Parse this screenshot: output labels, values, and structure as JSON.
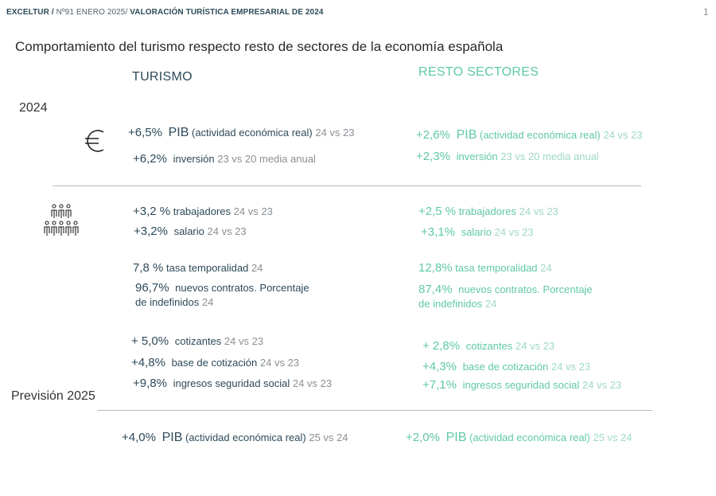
{
  "header": {
    "brand": "EXCELTUR /",
    "issue": "Nº91 ENERO 2025/",
    "title": "VALORACIÓN TURÍSTICA EMPRESARIAL DE  2024",
    "page_number": "1"
  },
  "title": "Comportamiento del turismo respecto resto de sectores de la economía española",
  "columns": {
    "turismo": "TURISMO",
    "resto": "RESTO SECTORES"
  },
  "sections": {
    "year": "2024",
    "forecast": "Previsión 2025"
  },
  "icons": {
    "economy": "euro-icon",
    "employment": "people-icon"
  },
  "colors": {
    "turismo": "#2d4a5a",
    "resto": "#5fc9a6"
  },
  "turismo": {
    "pib": {
      "value": "+6,5%",
      "name": "PIB",
      "label": "(actividad económica real)",
      "period": "24 vs 23"
    },
    "inversion": {
      "value": "+6,2%",
      "label": "inversión",
      "period": "23 vs 20 media anual"
    },
    "trabajadores": {
      "value": "+3,2 %",
      "label": "trabajadores",
      "period": "24 vs 23"
    },
    "salario": {
      "value": "+3,2%",
      "label": "salario",
      "period": "24 vs 23"
    },
    "temporalidad": {
      "value": "7,8 %",
      "label": "tasa temporalidad",
      "period": "24"
    },
    "contratos": {
      "value": "96,7%",
      "label": "nuevos contratos. Porcentaje",
      "label2": "de indefinidos",
      "period": "24"
    },
    "cotizantes": {
      "value": "+ 5,0%",
      "label": "cotizantes",
      "period": "24 vs 23"
    },
    "base": {
      "value": "+4,8%",
      "label": "base de cotización",
      "period": "24 vs 23"
    },
    "ingresos": {
      "value": "+9,8%",
      "label": "ingresos seguridad social",
      "period": "24 vs 23"
    },
    "pib2025": {
      "value": "+4,0%",
      "name": "PIB",
      "label": "(actividad económica real)",
      "period": "25 vs 24"
    }
  },
  "resto": {
    "pib": {
      "value": "+2,6%",
      "name": "PIB",
      "label": "(actividad económica real)",
      "period": "24 vs 23"
    },
    "inversion": {
      "value": "+2,3%",
      "label": "inversión",
      "period": "23 vs 20 media anual"
    },
    "trabajadores": {
      "value": "+2,5 %",
      "label": "trabajadores",
      "period": "24 vs 23"
    },
    "salario": {
      "value": "+3,1%",
      "label": "salario",
      "period": "24 vs 23"
    },
    "temporalidad": {
      "value": "12,8%",
      "label": "tasa temporalidad",
      "period": "24"
    },
    "contratos": {
      "value": "87,4%",
      "label": "nuevos contratos. Porcentaje",
      "label2": "de indefinidos",
      "period": "24"
    },
    "cotizantes": {
      "value": "+ 2,8%",
      "label": "cotizantes",
      "period": "24 vs 23"
    },
    "base": {
      "value": "+4,3%",
      "label": "base de cotización",
      "period": "24 vs 23"
    },
    "ingresos": {
      "value": "+7,1%",
      "label": "ingresos seguridad social",
      "period": "24 vs 23"
    },
    "pib2025": {
      "value": "+2,0%",
      "name": "PIB",
      "label": "(actividad económica real)",
      "period": "25 vs 24"
    }
  }
}
